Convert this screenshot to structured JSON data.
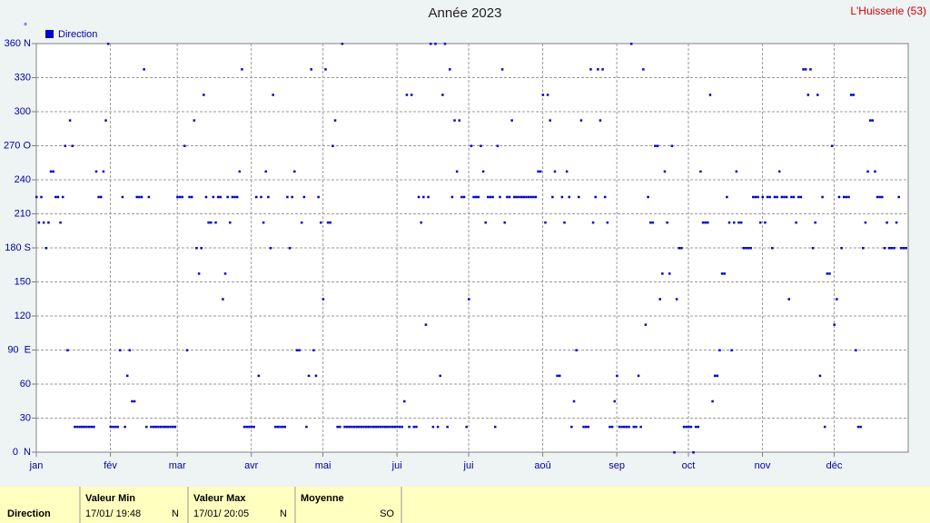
{
  "chart_data": {
    "type": "scatter",
    "title": "Année 2023",
    "station": "L'Huisserie (53)",
    "y_unit": "°",
    "series": [
      {
        "name": "Direction",
        "color": "#0000cc",
        "x": [
          0,
          1,
          2,
          3,
          4,
          5,
          6,
          7,
          8,
          9,
          10,
          11,
          12,
          13,
          14,
          15,
          16,
          17,
          18,
          19,
          20,
          21,
          22,
          23,
          24,
          25,
          26,
          27,
          28,
          29,
          30,
          31,
          32,
          33,
          34,
          35,
          36,
          37,
          38,
          39,
          40,
          41,
          42,
          43,
          44,
          45,
          46,
          47,
          48,
          49,
          50,
          51,
          52,
          53,
          54,
          55,
          56,
          57,
          58,
          59,
          60,
          61,
          62,
          63,
          64,
          65,
          66,
          67,
          68,
          69,
          70,
          71,
          72,
          73,
          74,
          75,
          76,
          77,
          78,
          79,
          80,
          81,
          82,
          83,
          84,
          85,
          86,
          87,
          88,
          89,
          90,
          91,
          92,
          93,
          94,
          95,
          96,
          97,
          98,
          99,
          100,
          101,
          102,
          103,
          104,
          105,
          106,
          107,
          108,
          109,
          110,
          111,
          112,
          113,
          114,
          115,
          116,
          117,
          118,
          119,
          120,
          121,
          122,
          123,
          124,
          125,
          126,
          127,
          128,
          129,
          130,
          131,
          132,
          133,
          134,
          135,
          136,
          137,
          138,
          139,
          140,
          141,
          142,
          143,
          144,
          145,
          146,
          147,
          148,
          149,
          150,
          151,
          152,
          153,
          154,
          155,
          156,
          157,
          158,
          159,
          160,
          161,
          162,
          163,
          164,
          165,
          166,
          167,
          168,
          169,
          170,
          171,
          172,
          173,
          174,
          175,
          176,
          177,
          178,
          179,
          180,
          181,
          182,
          183,
          184,
          185,
          186,
          187,
          188,
          189,
          190,
          191,
          192,
          193,
          194,
          195,
          196,
          197,
          198,
          199,
          200,
          201,
          202,
          203,
          204,
          205,
          206,
          207,
          208,
          209,
          210,
          211,
          212,
          213,
          214,
          215,
          216,
          217,
          218,
          219,
          220,
          221,
          222,
          223,
          224,
          225,
          226,
          227,
          228,
          229,
          230,
          231,
          232,
          233,
          234,
          235,
          236,
          237,
          238,
          239,
          240,
          241,
          242,
          243,
          244,
          245,
          246,
          247,
          248,
          249,
          250,
          251,
          252,
          253,
          254,
          255,
          256,
          257,
          258,
          259,
          260,
          261,
          262,
          263,
          264,
          265,
          266,
          267,
          268,
          269,
          270,
          271,
          272,
          273,
          274,
          275,
          276,
          277,
          278,
          279,
          280,
          281,
          282,
          283,
          284,
          285,
          286,
          287,
          288,
          289,
          290,
          291,
          292,
          293,
          294,
          295,
          296,
          297,
          298,
          299,
          300,
          301,
          302,
          303,
          304,
          305,
          306,
          307,
          308,
          309,
          310,
          311,
          312,
          313,
          314,
          315,
          316,
          317,
          318,
          319,
          320,
          321,
          322,
          323,
          324,
          325,
          326,
          327,
          328,
          329,
          330,
          331,
          332,
          333,
          334,
          335,
          336,
          337,
          338,
          339,
          340,
          341,
          342,
          343,
          344,
          345,
          346,
          347,
          348,
          349,
          350,
          351,
          352,
          353,
          354,
          355,
          356,
          357,
          358,
          359,
          360,
          361,
          362,
          363,
          364
        ],
        "values": [
          225,
          202.5,
          225,
          202.5,
          180,
          202.5,
          247.5,
          247.5,
          225,
          225,
          202.5,
          225,
          270,
          90,
          292.5,
          270,
          22.5,
          22.5,
          22.5,
          22.5,
          22.5,
          22.5,
          22.5,
          22.5,
          22.5,
          247.5,
          225,
          225,
          247.5,
          292.5,
          360,
          22.5,
          22.5,
          22.5,
          22.5,
          90,
          225,
          22.5,
          67.5,
          90,
          45,
          45,
          225,
          225,
          225,
          337.5,
          22.5,
          225,
          22.5,
          22.5,
          22.5,
          22.5,
          22.5,
          22.5,
          22.5,
          22.5,
          22.5,
          22.5,
          22.5,
          225,
          225,
          225,
          270,
          90,
          225,
          225,
          292.5,
          180,
          157.5,
          180,
          315,
          225,
          202.5,
          202.5,
          225,
          202.5,
          225,
          225,
          135,
          157.5,
          225,
          202.5,
          225,
          225,
          225,
          247.5,
          337.5,
          22.5,
          22.5,
          22.5,
          22.5,
          22.5,
          225,
          67.5,
          225,
          202.5,
          247.5,
          225,
          180,
          315,
          22.5,
          22.5,
          22.5,
          22.5,
          22.5,
          225,
          180,
          225,
          247.5,
          90,
          90,
          202.5,
          225,
          22.5,
          67.5,
          337.5,
          90,
          67.5,
          225,
          202.5,
          135,
          337.5,
          202.5,
          202.5,
          270,
          292.5,
          22.5,
          22.5,
          360,
          22.5,
          22.5,
          22.5,
          22.5,
          22.5,
          22.5,
          22.5,
          22.5,
          22.5,
          22.5,
          22.5,
          22.5,
          22.5,
          22.5,
          22.5,
          22.5,
          22.5,
          22.5,
          22.5,
          22.5,
          22.5,
          22.5,
          22.5,
          22.5,
          22.5,
          45,
          315,
          22.5,
          315,
          22.5,
          22.5,
          225,
          202.5,
          225,
          112.5,
          225,
          360,
          22.5,
          360,
          22.5,
          67.5,
          315,
          360,
          22.5,
          337.5,
          225,
          292.5,
          247.5,
          292.5,
          225,
          225,
          22.5,
          135,
          270,
          225,
          225,
          225,
          270,
          247.5,
          202.5,
          225,
          225,
          225,
          22.5,
          270,
          225,
          337.5,
          202.5,
          225,
          225,
          292.5,
          225,
          225,
          225,
          225,
          225,
          225,
          225,
          225,
          225,
          225,
          247.5,
          247.5,
          315,
          202.5,
          315,
          292.5,
          225,
          247.5,
          67.5,
          67.5,
          225,
          202.5,
          247.5,
          225,
          22.5,
          45,
          90,
          225,
          292.5,
          22.5,
          22.5,
          22.5,
          337.5,
          202.5,
          225,
          337.5,
          292.5,
          337.5,
          225,
          202.5,
          22.5,
          22.5,
          45,
          67.5,
          22.5,
          22.5,
          22.5,
          22.5,
          22.5,
          360,
          22.5,
          22.5,
          67.5,
          22.5,
          337.5,
          112.5,
          225,
          202.5,
          202.5,
          270,
          270,
          135,
          157.5,
          247.5,
          202.5,
          157.5,
          270,
          0,
          135,
          180,
          180,
          22.5,
          22.5,
          22.5,
          22.5,
          0,
          22.5,
          22.5,
          247.5,
          202.5,
          202.5,
          202.5,
          315,
          45,
          67.5,
          67.5,
          90,
          157.5,
          157.5,
          225,
          202.5,
          90,
          202.5,
          247.5,
          202.5,
          202.5,
          180,
          180,
          180,
          180,
          225,
          225,
          225,
          202.5,
          225,
          202.5,
          225,
          225,
          180,
          225,
          225,
          247.5,
          225,
          225,
          225,
          135,
          225,
          225,
          202.5,
          225,
          225,
          337.5,
          337.5,
          315,
          337.5,
          180,
          202.5,
          315,
          67.5,
          225,
          22.5,
          157.5,
          157.5,
          270,
          112.5,
          135,
          225,
          180,
          225,
          225,
          225,
          315,
          315,
          90,
          22.5,
          22.5,
          180,
          202.5,
          247.5,
          292.5,
          292.5,
          247.5,
          225,
          225,
          225,
          180,
          202.5,
          180,
          180,
          180,
          202.5,
          225,
          180,
          180,
          180
        ]
      }
    ],
    "xlim": [
      0,
      365
    ],
    "xticks": [
      {
        "value": 0,
        "label": "jan"
      },
      {
        "value": 31,
        "label": "fév"
      },
      {
        "value": 59,
        "label": "mar"
      },
      {
        "value": 90,
        "label": "avr"
      },
      {
        "value": 120,
        "label": "mai"
      },
      {
        "value": 151,
        "label": "jui"
      },
      {
        "value": 181,
        "label": "jui"
      },
      {
        "value": 212,
        "label": "aoû"
      },
      {
        "value": 243,
        "label": "sep"
      },
      {
        "value": 273,
        "label": "oct"
      },
      {
        "value": 304,
        "label": "nov"
      },
      {
        "value": 334,
        "label": "déc"
      }
    ],
    "ylim": [
      0,
      360
    ],
    "yticks": [
      {
        "value": 0,
        "label": "0  N"
      },
      30,
      60,
      {
        "value": 90,
        "label": "90  E"
      },
      120,
      150,
      {
        "value": 180,
        "label": "180 S"
      },
      210,
      240,
      {
        "value": 270,
        "label": "270 O"
      },
      300,
      330,
      {
        "value": 360,
        "label": "360 N"
      }
    ],
    "grid": true,
    "legend": "top-left"
  },
  "footer": {
    "row_label": "Direction",
    "min": {
      "header": "Valeur Min",
      "date": "17/01/ 19:48",
      "value": "N"
    },
    "max": {
      "header": "Valeur Max",
      "date": "17/01/ 20:05",
      "value": "N"
    },
    "mean": {
      "header": "Moyenne",
      "value": "SO"
    }
  }
}
